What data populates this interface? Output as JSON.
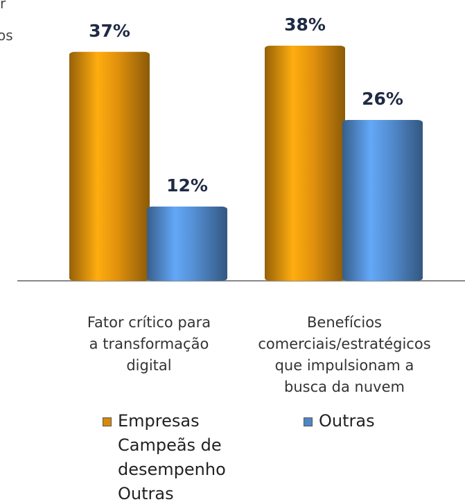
{
  "chart_data": {
    "type": "bar",
    "annotations": [
      "r",
      "os"
    ],
    "categories": [
      "Fator crítico para\na transformação\ndigital",
      "Benefícios\ncomerciais/estratégicos\nque impulsionam a\nbusca da nuvem"
    ],
    "series": [
      {
        "name": "Empresas\nCampeãs de\ndesempenho\nOutras",
        "color": "#d68a0c",
        "values": [
          37,
          38
        ],
        "value_labels": [
          "37%",
          "38%"
        ]
      },
      {
        "name": "Outras",
        "color": "#4f86c6",
        "values": [
          12,
          26
        ],
        "value_labels": [
          "12%",
          "26%"
        ]
      }
    ],
    "ylim": [
      0,
      40
    ]
  }
}
